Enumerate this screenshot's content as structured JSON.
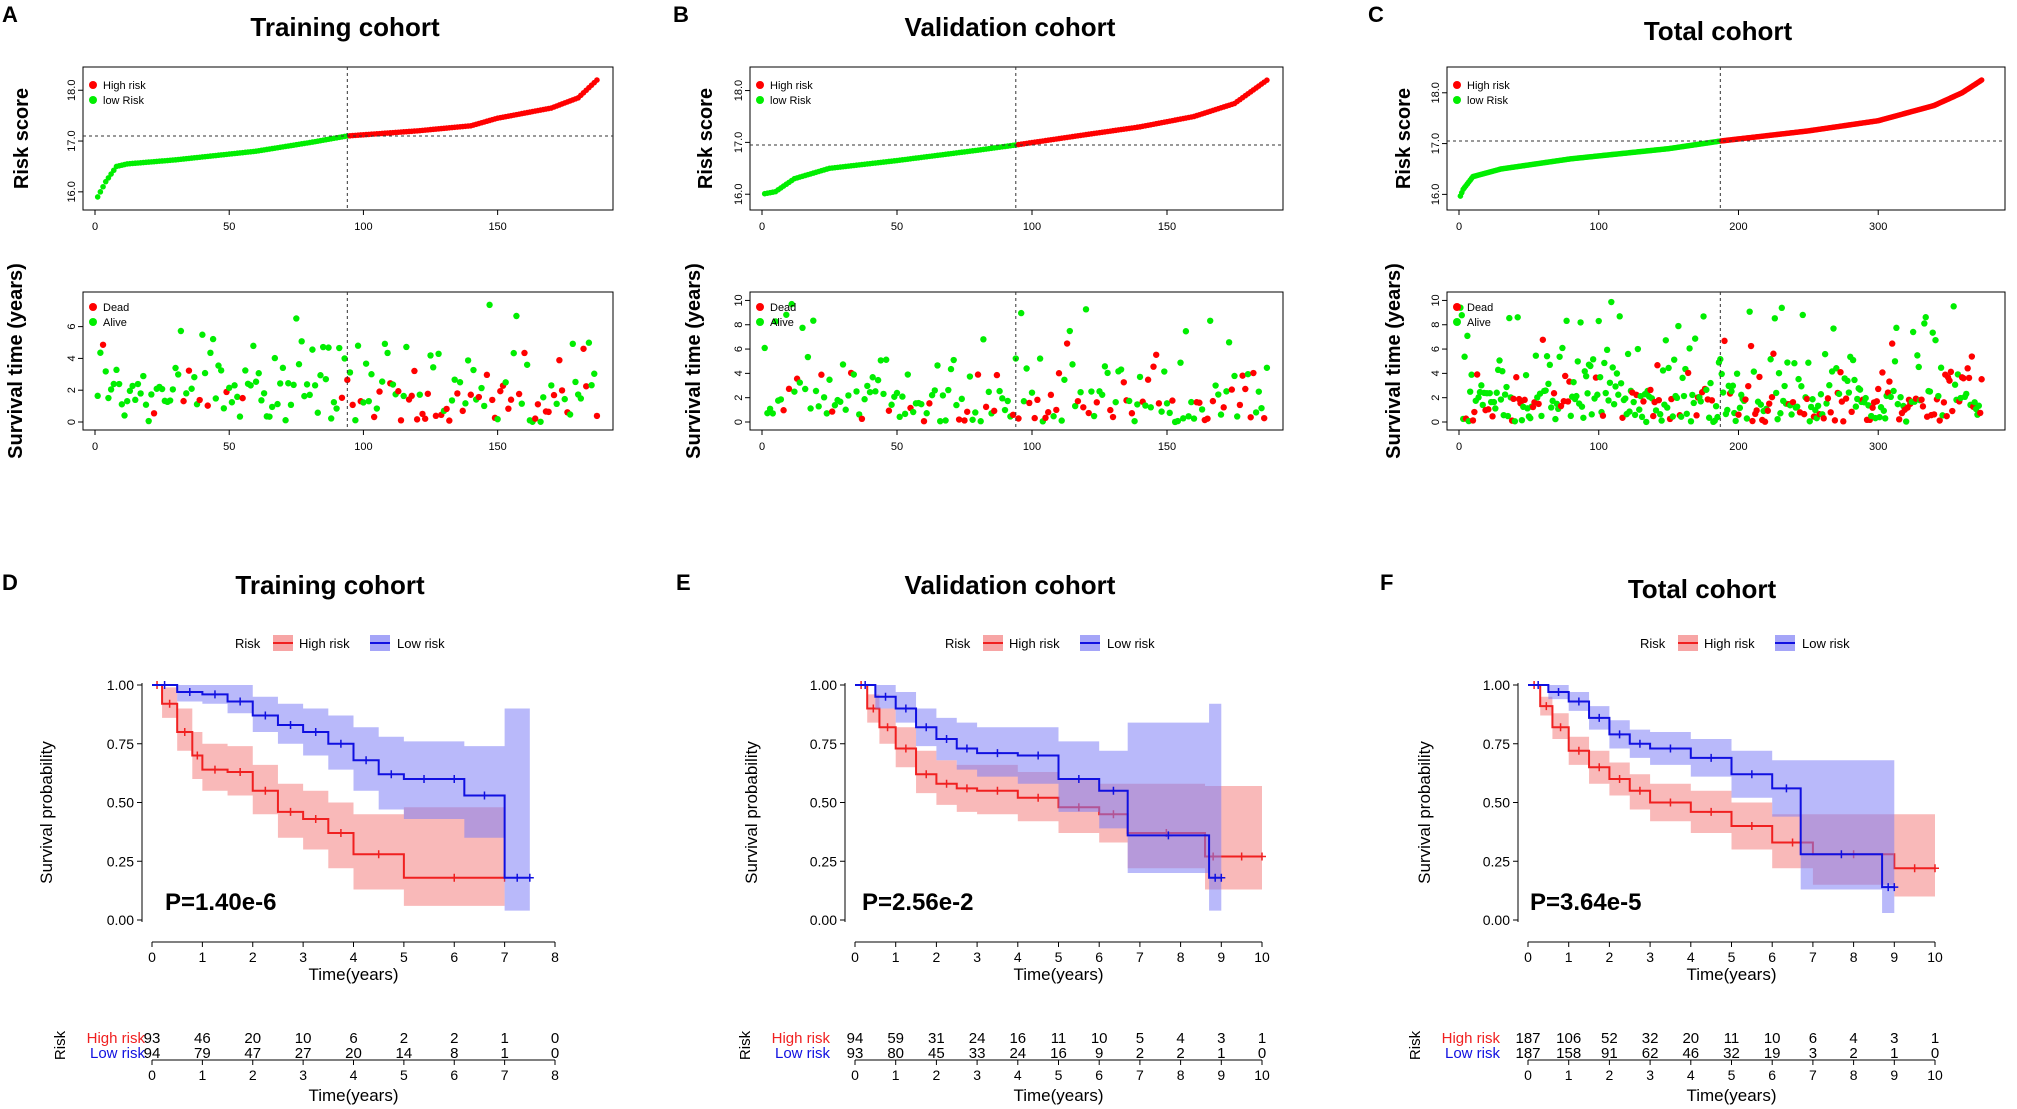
{
  "colors": {
    "high": "#ff0000",
    "low": "#00ee00",
    "high_km": "#f02020",
    "low_km": "#1010e0",
    "high_band": "#f47f7f",
    "low_band": "#7f7ff5"
  },
  "chart_data": [
    {
      "panel": "A",
      "type": "scatter",
      "title": "Training cohort",
      "ylabel": "Risk score",
      "xlim": [
        0,
        190
      ],
      "ylim": [
        15.8,
        18.3
      ],
      "xticks": [
        0,
        50,
        100,
        150
      ],
      "yticks": [
        16.0,
        17.0,
        18.0
      ],
      "legend": [
        "High risk",
        "low Risk"
      ],
      "legend_position": "top-left",
      "n": 187,
      "cutoff_index": 94,
      "cutoff_score": 17.1,
      "curve": [
        [
          0,
          15.8
        ],
        [
          4,
          16.2
        ],
        [
          8,
          16.5
        ],
        [
          12,
          16.55
        ],
        [
          30,
          16.63
        ],
        [
          60,
          16.8
        ],
        [
          80,
          16.97
        ],
        [
          94,
          17.1
        ],
        [
          120,
          17.2
        ],
        [
          140,
          17.3
        ],
        [
          150,
          17.45
        ],
        [
          170,
          17.65
        ],
        [
          180,
          17.85
        ],
        [
          187,
          18.2
        ]
      ]
    },
    {
      "panel": "A",
      "type": "scatter",
      "title": "",
      "ylabel": "Survival time (years)",
      "xlim": [
        0,
        190
      ],
      "ylim": [
        0,
        7.8
      ],
      "xticks": [
        0,
        50,
        100,
        150
      ],
      "yticks": [
        0,
        2,
        4,
        6
      ],
      "legend": [
        "Dead",
        "Alive"
      ],
      "legend_position": "top-left",
      "n": 187,
      "cutoff_index": 94,
      "points_shown": "patient survival times, colored by vital status"
    },
    {
      "panel": "B",
      "type": "scatter",
      "title": "Validation cohort",
      "ylabel": "Risk score",
      "xlim": [
        0,
        190
      ],
      "ylim": [
        15.85,
        18.3
      ],
      "xticks": [
        0,
        50,
        100,
        150
      ],
      "yticks": [
        16.0,
        17.0,
        18.0
      ],
      "legend": [
        "High risk",
        "low Risk"
      ],
      "legend_position": "top-left",
      "n": 187,
      "cutoff_index": 94,
      "cutoff_score": 16.95,
      "curve": [
        [
          0,
          16.0
        ],
        [
          5,
          16.05
        ],
        [
          12,
          16.3
        ],
        [
          25,
          16.5
        ],
        [
          50,
          16.65
        ],
        [
          80,
          16.85
        ],
        [
          94,
          16.95
        ],
        [
          120,
          17.15
        ],
        [
          140,
          17.3
        ],
        [
          160,
          17.5
        ],
        [
          175,
          17.75
        ],
        [
          187,
          18.2
        ]
      ]
    },
    {
      "panel": "B",
      "type": "scatter",
      "title": "",
      "ylabel": "Survival time (years)",
      "xlim": [
        0,
        190
      ],
      "ylim": [
        0,
        10.2
      ],
      "xticks": [
        0,
        50,
        100,
        150
      ],
      "yticks": [
        0,
        2,
        4,
        6,
        8,
        10
      ],
      "legend": [
        "Dead",
        "Alive"
      ],
      "legend_position": "top-left",
      "n": 187,
      "cutoff_index": 94,
      "points_shown": "patient survival times, colored by vital status"
    },
    {
      "panel": "C",
      "type": "scatter",
      "title": "Total cohort",
      "ylabel": "Risk score",
      "xlim": [
        0,
        385
      ],
      "ylim": [
        15.85,
        18.35
      ],
      "xticks": [
        0,
        100,
        200,
        300
      ],
      "yticks": [
        16.0,
        17.0,
        18.0
      ],
      "legend": [
        "High risk",
        "low Risk"
      ],
      "legend_position": "top-left",
      "n": 374,
      "cutoff_index": 187,
      "cutoff_score": 17.05,
      "curve": [
        [
          0,
          15.9
        ],
        [
          3,
          16.1
        ],
        [
          10,
          16.35
        ],
        [
          30,
          16.5
        ],
        [
          80,
          16.7
        ],
        [
          150,
          16.9
        ],
        [
          187,
          17.05
        ],
        [
          250,
          17.25
        ],
        [
          300,
          17.45
        ],
        [
          340,
          17.75
        ],
        [
          360,
          18.0
        ],
        [
          374,
          18.25
        ]
      ]
    },
    {
      "panel": "C",
      "type": "scatter",
      "title": "",
      "ylabel": "Survival time (years)",
      "xlim": [
        0,
        385
      ],
      "ylim": [
        0,
        10.2
      ],
      "xticks": [
        0,
        100,
        200,
        300
      ],
      "yticks": [
        0,
        2,
        4,
        6,
        8,
        10
      ],
      "legend": [
        "Dead",
        "Alive"
      ],
      "legend_position": "top-left",
      "n": 374,
      "cutoff_index": 187,
      "points_shown": "patient survival times, colored by vital status"
    },
    {
      "panel": "D",
      "type": "line",
      "title": "Training cohort",
      "legend_title": "Risk",
      "legend": [
        "High risk",
        "Low risk"
      ],
      "legend_position": "top",
      "xlabel": "Time(years)",
      "ylabel": "Survival probability",
      "xlim": [
        0,
        8
      ],
      "ylim": [
        0,
        1
      ],
      "xticks": [
        0,
        1,
        2,
        3,
        4,
        5,
        6,
        7,
        8
      ],
      "yticks": [
        0.0,
        0.25,
        0.5,
        0.75,
        1.0
      ],
      "pvalue": "P=1.40e-6",
      "series": [
        {
          "name": "High risk",
          "x": [
            0,
            0.2,
            0.5,
            0.8,
            1.0,
            1.5,
            2.0,
            2.5,
            3.0,
            3.5,
            4.0,
            5.0,
            7.0
          ],
          "y": [
            1.0,
            0.92,
            0.8,
            0.7,
            0.64,
            0.63,
            0.55,
            0.46,
            0.43,
            0.37,
            0.28,
            0.18,
            0.18
          ],
          "lower": [
            1.0,
            0.86,
            0.72,
            0.6,
            0.55,
            0.53,
            0.45,
            0.35,
            0.3,
            0.22,
            0.13,
            0.06,
            0.06
          ],
          "upper": [
            1.0,
            0.99,
            0.9,
            0.8,
            0.75,
            0.74,
            0.66,
            0.58,
            0.55,
            0.5,
            0.45,
            0.48,
            0.48
          ]
        },
        {
          "name": "Low risk",
          "x": [
            0,
            0.5,
            1.0,
            1.5,
            2.0,
            2.5,
            3.0,
            3.5,
            4.0,
            4.5,
            5.0,
            5.8,
            6.2,
            7.0,
            7.5
          ],
          "y": [
            1.0,
            0.97,
            0.96,
            0.93,
            0.87,
            0.83,
            0.8,
            0.75,
            0.68,
            0.62,
            0.6,
            0.6,
            0.53,
            0.18,
            0.18
          ],
          "lower": [
            1.0,
            0.93,
            0.92,
            0.88,
            0.8,
            0.75,
            0.7,
            0.64,
            0.55,
            0.47,
            0.43,
            0.43,
            0.35,
            0.04,
            0.04
          ],
          "upper": [
            1.0,
            1.0,
            1.0,
            1.0,
            0.95,
            0.92,
            0.9,
            0.87,
            0.82,
            0.78,
            0.76,
            0.76,
            0.74,
            0.9,
            0.9
          ]
        }
      ],
      "risk_table": {
        "title": "Risk",
        "xlabel": "Time(years)",
        "times": [
          0,
          1,
          2,
          3,
          4,
          5,
          6,
          7,
          8
        ],
        "rows": [
          {
            "label": "High risk",
            "counts": [
              "93",
              "46",
              "20",
              "10",
              "6",
              "2",
              "2",
              "1",
              "0"
            ]
          },
          {
            "label": "Low risk",
            "counts": [
              "94",
              "79",
              "47",
              "27",
              "20",
              "14",
              "8",
              "1",
              "0"
            ]
          }
        ]
      }
    },
    {
      "panel": "E",
      "type": "line",
      "title": "Validation cohort",
      "legend_title": "Risk",
      "legend": [
        "High risk",
        "Low risk"
      ],
      "legend_position": "top",
      "xlabel": "Time(years)",
      "ylabel": "Survival probability",
      "xlim": [
        0,
        10
      ],
      "ylim": [
        0,
        1
      ],
      "xticks": [
        0,
        1,
        2,
        3,
        4,
        5,
        6,
        7,
        8,
        9,
        10
      ],
      "yticks": [
        0.0,
        0.25,
        0.5,
        0.75,
        1.0
      ],
      "pvalue": "P=2.56e-2",
      "series": [
        {
          "name": "High risk",
          "x": [
            0,
            0.3,
            0.6,
            1.0,
            1.5,
            2.0,
            2.5,
            3.0,
            4.0,
            5.0,
            6.0,
            6.7,
            8.6,
            9.0,
            10.0
          ],
          "y": [
            1.0,
            0.9,
            0.82,
            0.73,
            0.62,
            0.58,
            0.56,
            0.55,
            0.52,
            0.48,
            0.45,
            0.37,
            0.27,
            0.27,
            0.27
          ],
          "lower": [
            1.0,
            0.84,
            0.75,
            0.65,
            0.54,
            0.49,
            0.46,
            0.45,
            0.42,
            0.37,
            0.33,
            0.22,
            0.13,
            0.13,
            0.13
          ],
          "upper": [
            1.0,
            0.96,
            0.9,
            0.82,
            0.72,
            0.68,
            0.66,
            0.66,
            0.63,
            0.6,
            0.58,
            0.58,
            0.57,
            0.57,
            0.57
          ]
        },
        {
          "name": "Low risk",
          "x": [
            0,
            0.5,
            1.0,
            1.5,
            2.0,
            2.5,
            3.0,
            4.0,
            5.0,
            6.0,
            6.7,
            8.7,
            9.0
          ],
          "y": [
            1.0,
            0.95,
            0.9,
            0.82,
            0.77,
            0.73,
            0.71,
            0.7,
            0.6,
            0.55,
            0.36,
            0.18,
            0.18
          ],
          "lower": [
            1.0,
            0.9,
            0.84,
            0.74,
            0.68,
            0.64,
            0.61,
            0.58,
            0.46,
            0.39,
            0.2,
            0.04,
            0.04
          ],
          "upper": [
            1.0,
            1.0,
            0.97,
            0.9,
            0.86,
            0.84,
            0.82,
            0.82,
            0.76,
            0.72,
            0.84,
            0.92,
            0.92
          ]
        }
      ],
      "risk_table": {
        "title": "Risk",
        "xlabel": "Time(years)",
        "times": [
          0,
          1,
          2,
          3,
          4,
          5,
          6,
          7,
          8,
          9,
          10
        ],
        "rows": [
          {
            "label": "High risk",
            "counts": [
              "94",
              "59",
              "31",
              "24",
              "16",
              "11",
              "10",
              "5",
              "4",
              "3",
              "1"
            ]
          },
          {
            "label": "Low risk",
            "counts": [
              "93",
              "80",
              "45",
              "33",
              "24",
              "16",
              "9",
              "2",
              "2",
              "1",
              "0"
            ]
          }
        ]
      }
    },
    {
      "panel": "F",
      "type": "line",
      "title": "Total cohort",
      "legend_title": "Risk",
      "legend": [
        "High risk",
        "Low risk"
      ],
      "legend_position": "top",
      "xlabel": "Time(years)",
      "ylabel": "Survival probability",
      "xlim": [
        0,
        10
      ],
      "ylim": [
        0,
        1
      ],
      "xticks": [
        0,
        1,
        2,
        3,
        4,
        5,
        6,
        7,
        8,
        9,
        10
      ],
      "yticks": [
        0.0,
        0.25,
        0.5,
        0.75,
        1.0
      ],
      "pvalue": "P=3.64e-5",
      "series": [
        {
          "name": "High risk",
          "x": [
            0,
            0.3,
            0.6,
            1.0,
            1.5,
            2.0,
            2.5,
            3.0,
            4.0,
            5.0,
            6.0,
            7.0,
            9.0,
            10.0
          ],
          "y": [
            1.0,
            0.91,
            0.82,
            0.72,
            0.65,
            0.6,
            0.55,
            0.5,
            0.46,
            0.4,
            0.33,
            0.28,
            0.22,
            0.22
          ],
          "lower": [
            1.0,
            0.87,
            0.77,
            0.66,
            0.58,
            0.53,
            0.47,
            0.42,
            0.37,
            0.3,
            0.22,
            0.15,
            0.1,
            0.1
          ],
          "upper": [
            1.0,
            0.95,
            0.88,
            0.78,
            0.72,
            0.67,
            0.62,
            0.58,
            0.55,
            0.5,
            0.45,
            0.45,
            0.45,
            0.45
          ]
        },
        {
          "name": "Low risk",
          "x": [
            0,
            0.5,
            1.0,
            1.5,
            2.0,
            2.5,
            3.0,
            4.0,
            5.0,
            6.0,
            6.7,
            8.7,
            9.0
          ],
          "y": [
            1.0,
            0.97,
            0.93,
            0.86,
            0.79,
            0.75,
            0.73,
            0.69,
            0.62,
            0.56,
            0.28,
            0.14,
            0.14
          ],
          "lower": [
            1.0,
            0.94,
            0.89,
            0.81,
            0.73,
            0.69,
            0.66,
            0.61,
            0.52,
            0.44,
            0.13,
            0.03,
            0.03
          ],
          "upper": [
            1.0,
            1.0,
            0.97,
            0.91,
            0.85,
            0.81,
            0.8,
            0.77,
            0.72,
            0.68,
            0.68,
            0.68,
            0.68
          ]
        }
      ],
      "risk_table": {
        "title": "Risk",
        "xlabel": "Time(years)",
        "times": [
          0,
          1,
          2,
          3,
          4,
          5,
          6,
          7,
          8,
          9,
          10
        ],
        "rows": [
          {
            "label": "High risk",
            "counts": [
              "187",
              "106",
              "52",
              "32",
              "20",
              "11",
              "10",
              "6",
              "4",
              "3",
              "1"
            ]
          },
          {
            "label": "Low risk",
            "counts": [
              "187",
              "158",
              "91",
              "62",
              "46",
              "32",
              "19",
              "3",
              "2",
              "1",
              "0"
            ]
          }
        ]
      }
    }
  ]
}
